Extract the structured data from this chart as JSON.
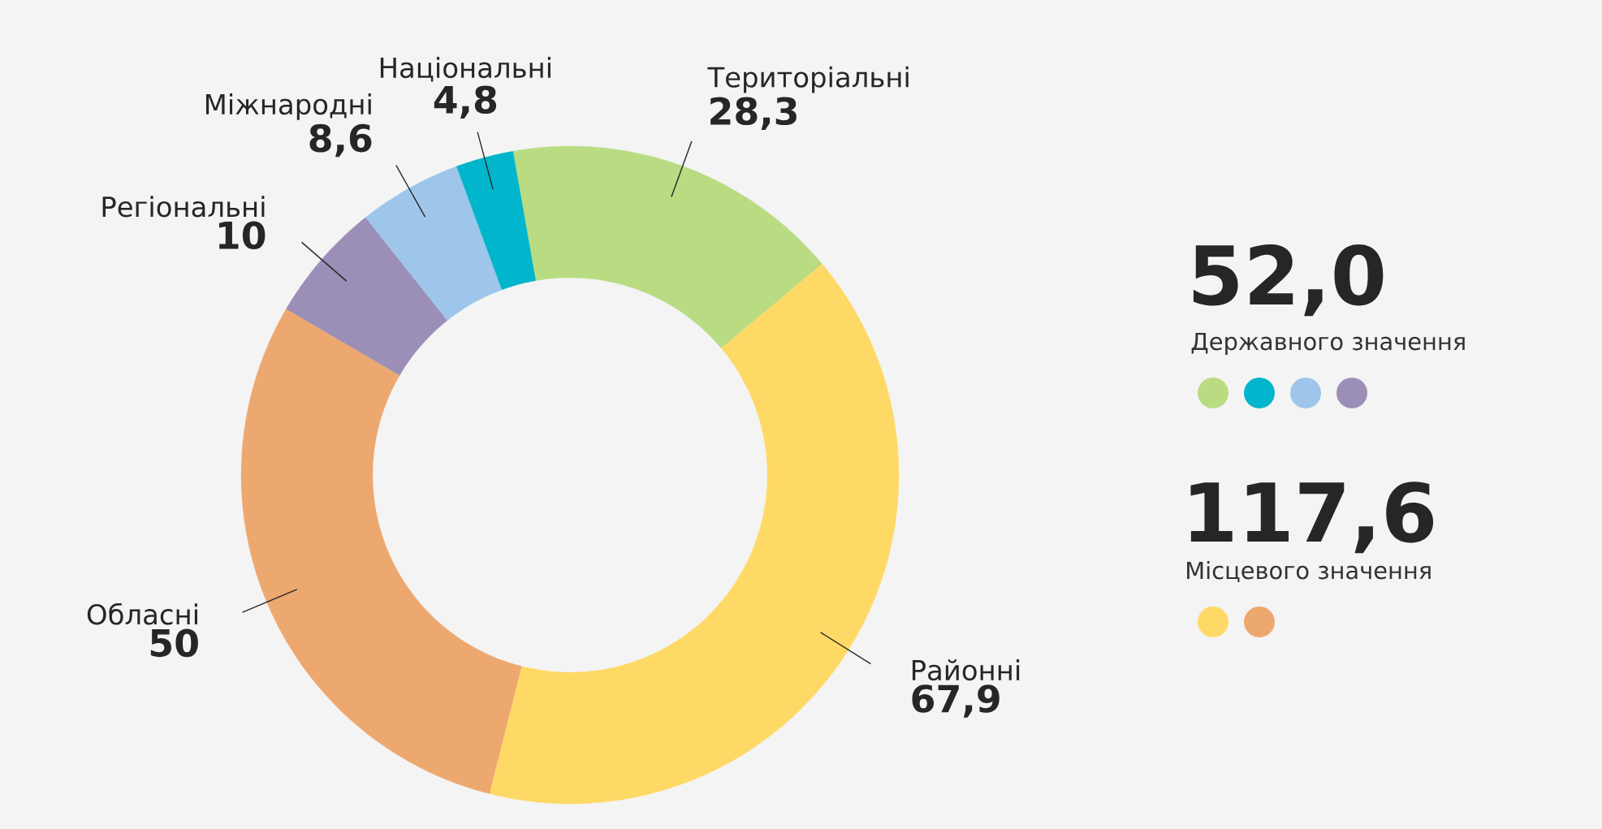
{
  "chart_data": {
    "type": "donut",
    "categories": [
      "Територіальні",
      "Районні",
      "Обласні",
      "Регіональні",
      "Міжнародні",
      "Національні"
    ],
    "values": [
      28.3,
      67.9,
      50,
      10,
      8.6,
      4.8
    ],
    "value_labels": [
      "28,3",
      "67,9",
      "50",
      "10",
      "8,6",
      "4,8"
    ],
    "colors": [
      "#b9dc82",
      "#ffd966",
      "#eda870",
      "#9b8fb8",
      "#9ec6ea",
      "#00b5cc"
    ],
    "annotations": [
      "52,0",
      "Державного значення",
      "117,6",
      "Місцевого значення"
    ]
  }
}
